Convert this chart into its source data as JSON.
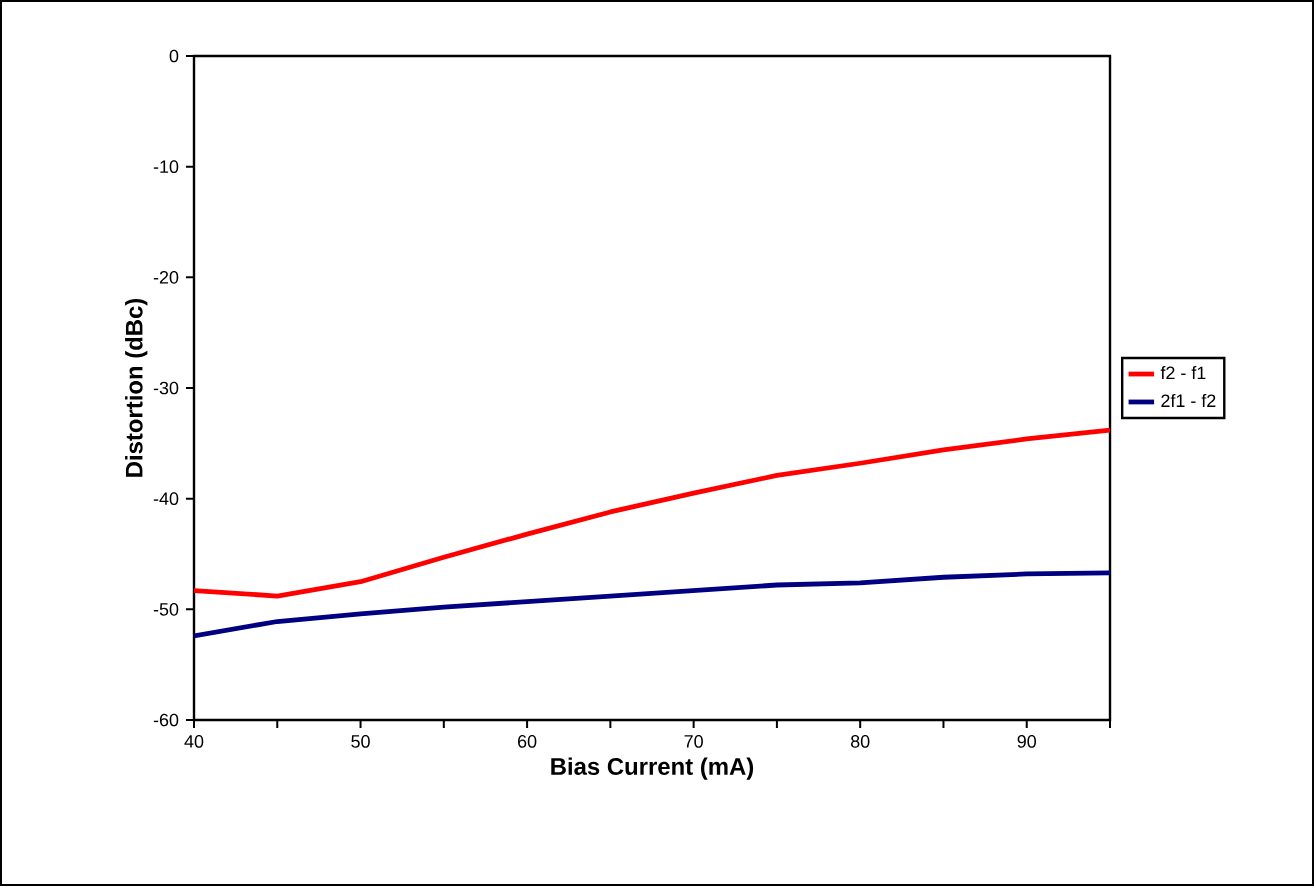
{
  "chart_data": {
    "type": "line",
    "xlabel": "Bias Current (mA)",
    "ylabel": "Distortion (dBc)",
    "x": [
      40,
      45,
      50,
      55,
      60,
      65,
      70,
      75,
      80,
      85,
      90,
      95
    ],
    "series": [
      {
        "name": "f2 - f1",
        "color": "#ff0000",
        "values": [
          -48.3,
          -48.8,
          -47.5,
          -45.3,
          -43.2,
          -41.2,
          -39.5,
          -37.9,
          -36.8,
          -35.6,
          -34.6,
          -33.8
        ]
      },
      {
        "name": "2f1 - f2",
        "color": "#000080",
        "values": [
          -52.4,
          -51.1,
          -50.4,
          -49.8,
          -49.3,
          -48.8,
          -48.3,
          -47.8,
          -47.6,
          -47.1,
          -46.8,
          -46.7
        ]
      }
    ],
    "xlim": [
      40,
      95
    ],
    "xticks": [
      40,
      {
        "value": 45,
        "label": null
      },
      50,
      {
        "value": 55,
        "label": null
      },
      60,
      {
        "value": 65,
        "label": null
      },
      70,
      {
        "value": 75,
        "label": null
      },
      80,
      {
        "value": 85,
        "label": null
      },
      90,
      {
        "value": 95,
        "label": null
      }
    ],
    "ylim": [
      -60,
      0
    ],
    "yticks": [
      -60,
      -50,
      -40,
      -30,
      -20,
      -10,
      0
    ],
    "legend": "right"
  }
}
